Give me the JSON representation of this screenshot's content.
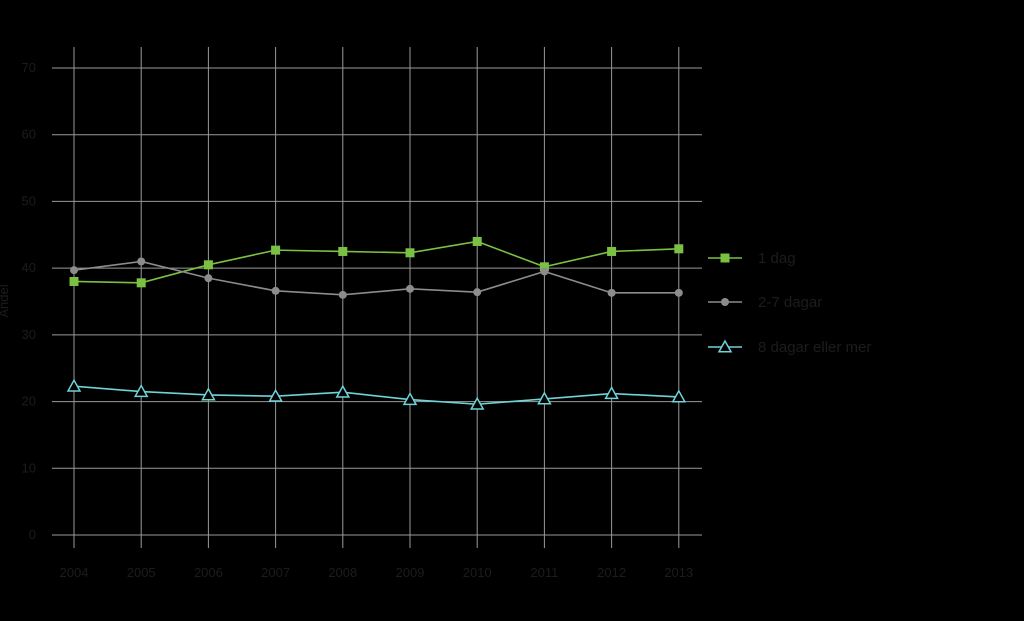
{
  "chart_data": {
    "type": "line",
    "title": "",
    "xlabel": "",
    "ylabel": "Andel",
    "x": [
      "2004",
      "2005",
      "2006",
      "2007",
      "2008",
      "2009",
      "2010",
      "2011",
      "2012",
      "2013"
    ],
    "ylim": [
      0,
      70
    ],
    "yticks": [
      "0",
      "10",
      "20",
      "30",
      "40",
      "50",
      "60",
      "70"
    ],
    "grid": true,
    "legend_position": "right",
    "background": "#000000",
    "series": [
      {
        "name": "1 dag",
        "color": "#7ac143",
        "marker": "square",
        "values": [
          38,
          37.8,
          40.5,
          42.7,
          42.5,
          42.3,
          44,
          40.2,
          42.5,
          42.9
        ]
      },
      {
        "name": "2-7 dagar",
        "color": "#8c8c8c",
        "marker": "circle",
        "values": [
          39.7,
          41,
          38.5,
          36.6,
          36,
          36.9,
          36.4,
          39.5,
          36.3,
          36.3
        ]
      },
      {
        "name": "8 dagar eller mer",
        "color": "#6fd3d8",
        "marker": "triangle",
        "values": [
          22.3,
          21.5,
          21,
          20.8,
          21.4,
          20.3,
          19.6,
          20.4,
          21.2,
          20.7
        ]
      }
    ]
  }
}
